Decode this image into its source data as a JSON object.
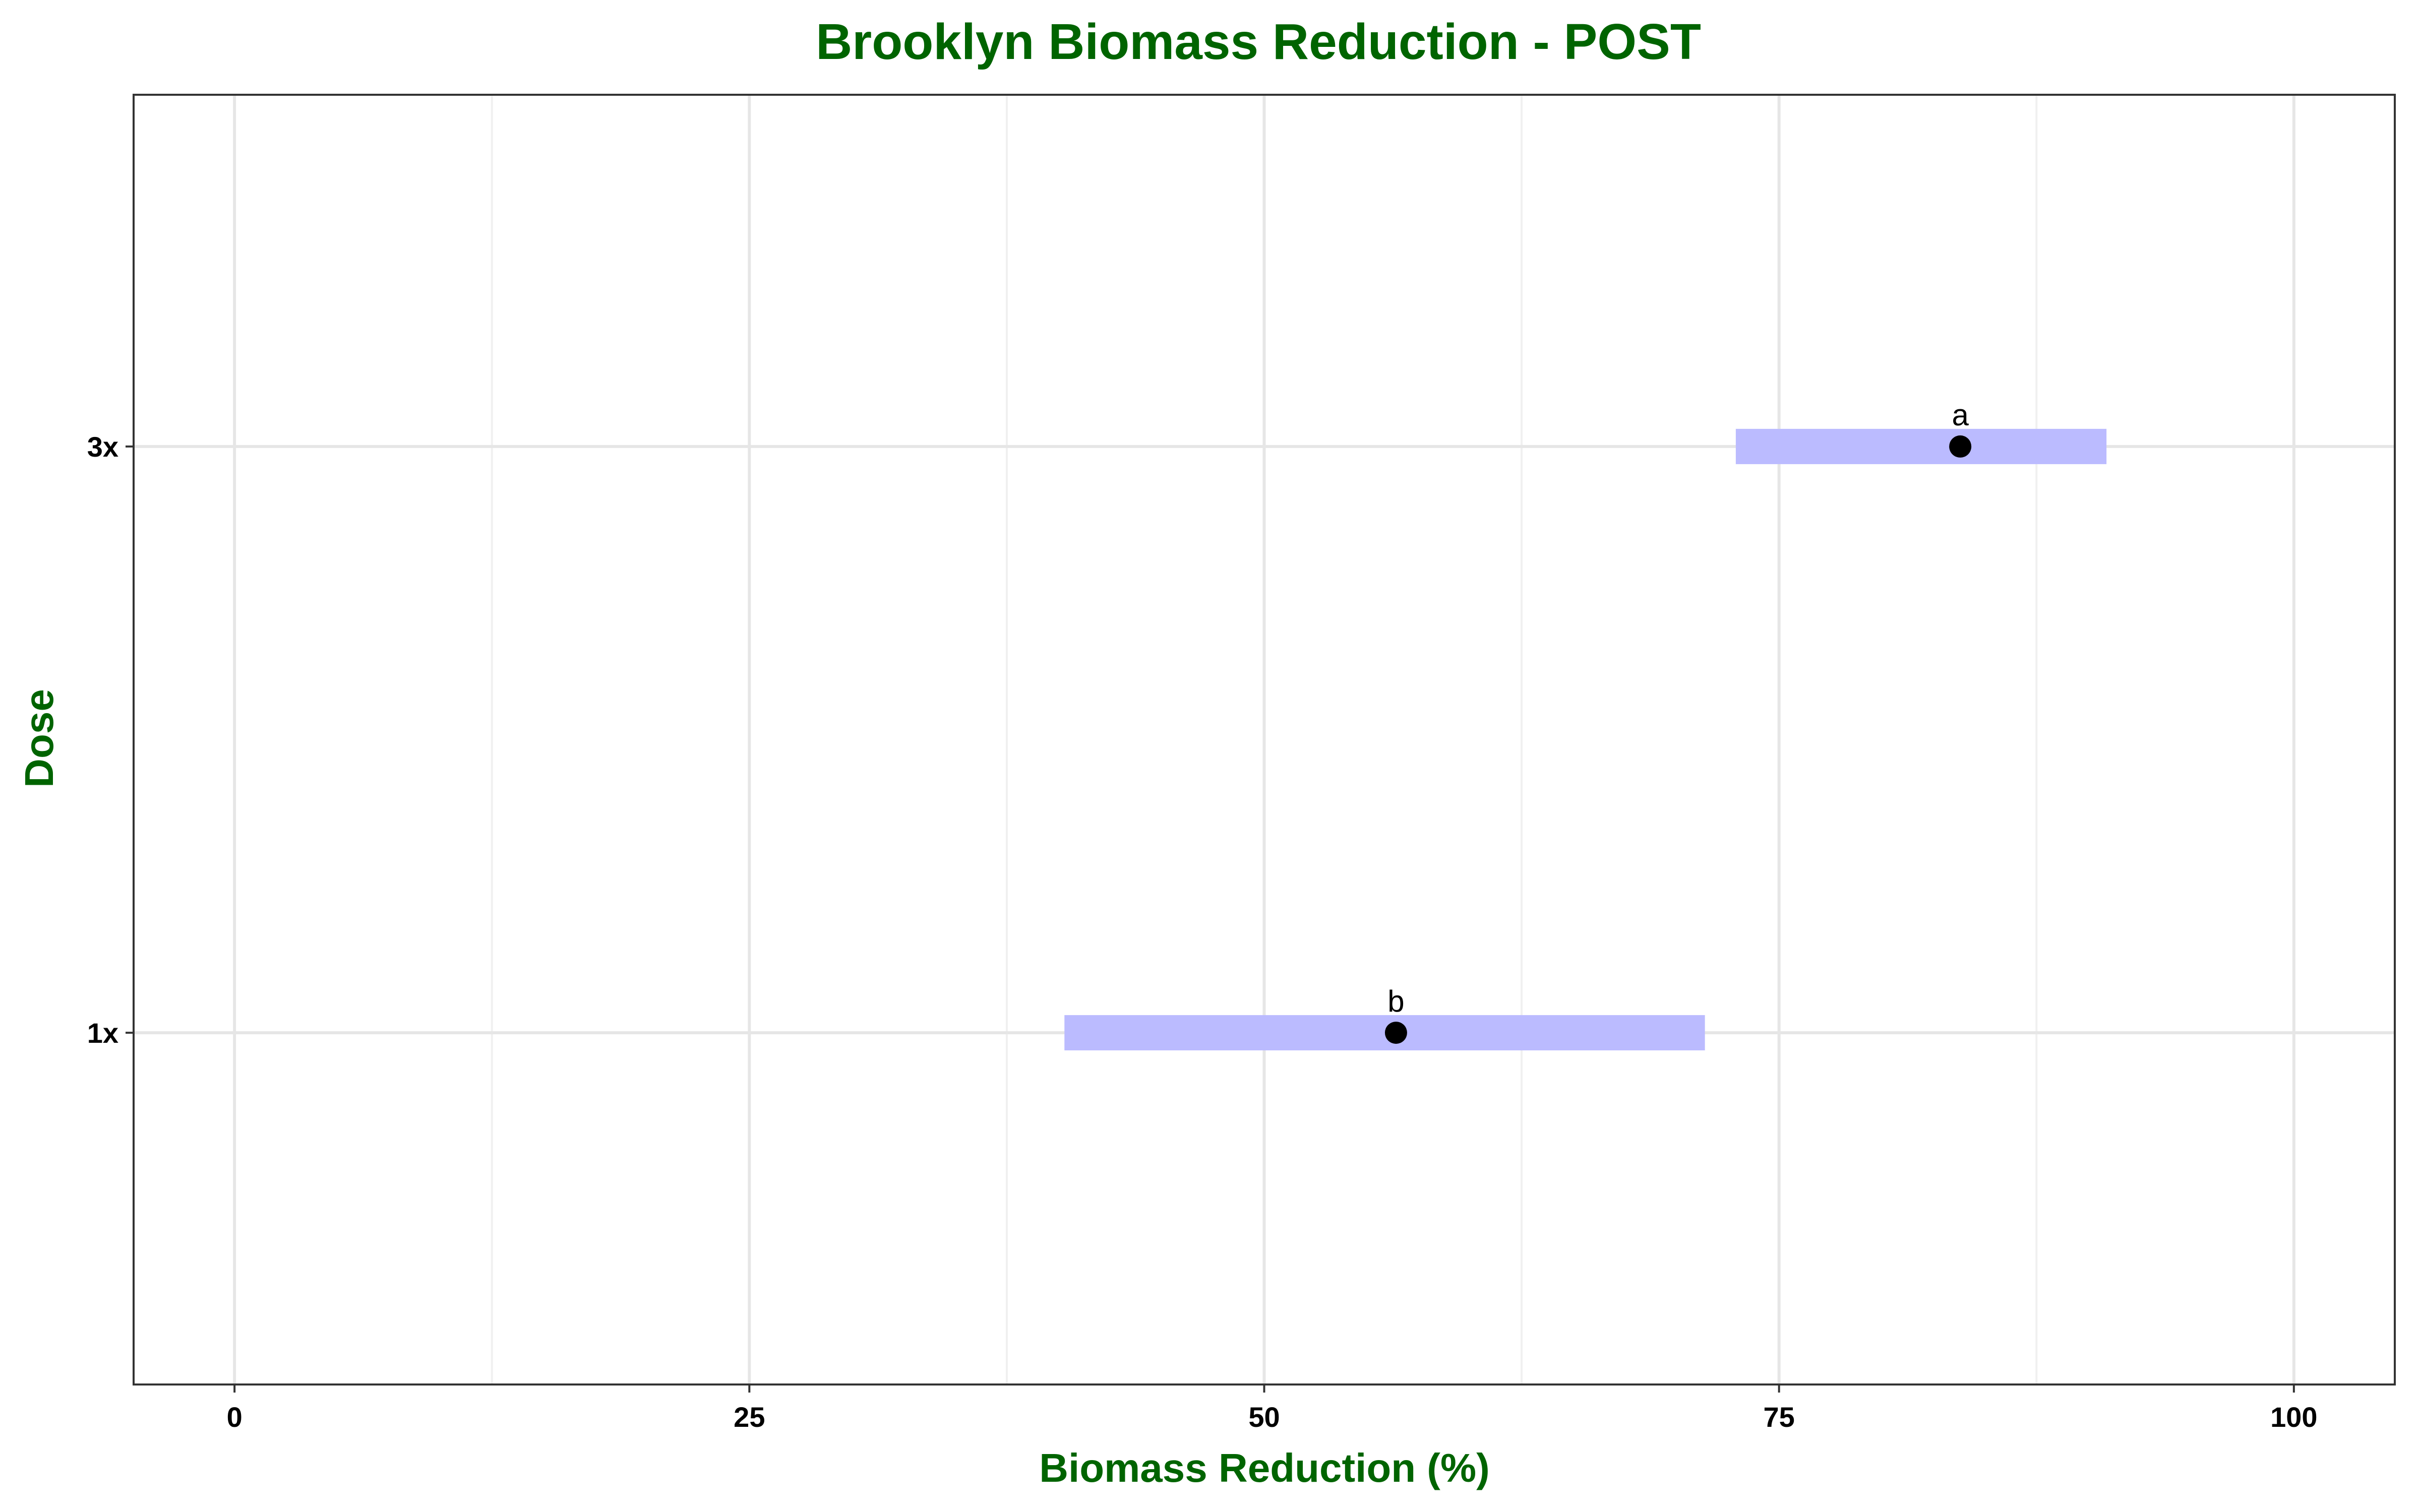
{
  "chart_data": {
    "type": "scatter",
    "title": "Brooklyn Biomass Reduction - POST",
    "xlabel": "Biomass Reduction (%)",
    "ylabel": "Dose",
    "xlim": [
      -4.9,
      104.9
    ],
    "x_ticks": [
      0,
      25,
      50,
      75,
      100
    ],
    "x_tick_labels": [
      "0",
      "25",
      "50",
      "75",
      "100"
    ],
    "categories": [
      "1x",
      "3x"
    ],
    "grid": true,
    "legend": "none",
    "points": [
      {
        "dose": "1x",
        "estimate": 56.4,
        "lower": 40.3,
        "upper": 71.4,
        "group": "b"
      },
      {
        "dose": "3x",
        "estimate": 83.8,
        "lower": 72.9,
        "upper": 90.9,
        "group": "a"
      }
    ],
    "colors": {
      "title": "#006400",
      "interval": "#bbbbff",
      "point": "#000000",
      "grid_major": "#e6e6e6",
      "grid_minor": "#f0f0f0"
    }
  }
}
